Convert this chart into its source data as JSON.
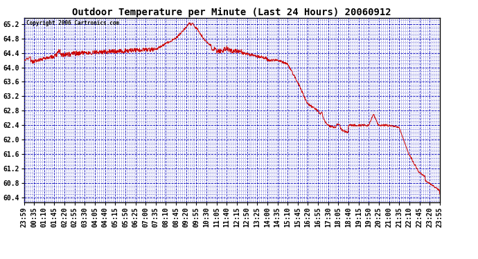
{
  "title": "Outdoor Temperature per Minute (Last 24 Hours) 20060912",
  "copyright": "Copyright 2006 Cartronics.com",
  "bg_color": "#ffffff",
  "line_color": "#cc0000",
  "grid_major_color": "#0000bb",
  "grid_minor_color": "#0000bb",
  "ylim": [
    60.28,
    65.36
  ],
  "yticks": [
    60.4,
    60.8,
    61.2,
    61.6,
    62.0,
    62.4,
    62.8,
    63.2,
    63.6,
    64.0,
    64.4,
    64.8,
    65.2
  ],
  "xtick_labels": [
    "23:59",
    "00:35",
    "01:10",
    "01:45",
    "02:20",
    "02:55",
    "03:30",
    "04:05",
    "04:40",
    "05:15",
    "05:50",
    "06:25",
    "07:00",
    "07:35",
    "08:10",
    "08:45",
    "09:20",
    "09:55",
    "10:30",
    "11:05",
    "11:40",
    "12:15",
    "12:50",
    "13:25",
    "14:00",
    "14:35",
    "15:10",
    "15:45",
    "16:20",
    "16:55",
    "17:30",
    "18:05",
    "18:40",
    "19:15",
    "19:50",
    "20:25",
    "21:00",
    "21:35",
    "22:10",
    "22:45",
    "23:20",
    "23:55"
  ],
  "n_xticks": 42,
  "figsize": [
    6.9,
    3.75
  ],
  "dpi": 100
}
